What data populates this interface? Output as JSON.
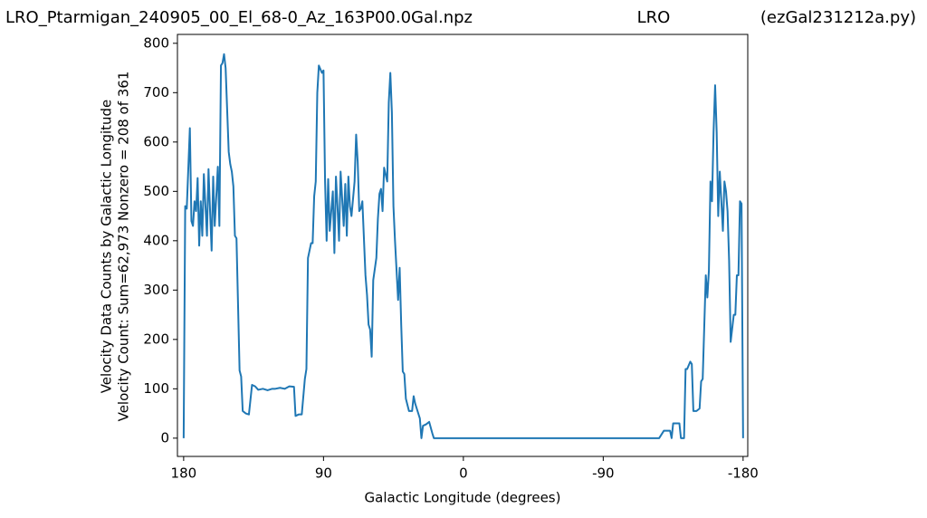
{
  "chart_data": {
    "type": "line",
    "title": "LRO_Ptarmigan_240905_00_El_68-0_Az_163P00.0Gal.npz",
    "title_center": "LRO",
    "title_right": "(ezGal231212a.py)",
    "xlabel": "Galactic Longitude (degrees)",
    "ylabel": [
      "Velocity Data Counts by Galactic Longitude",
      "Velocity Count: Sum=62,973 Nonzero = 208 of 361"
    ],
    "x": [
      180,
      179,
      178,
      176,
      175,
      174,
      173,
      172,
      171,
      170,
      169,
      168,
      167,
      165,
      164,
      163,
      162,
      161,
      160,
      158,
      157,
      156,
      155,
      154,
      153,
      151,
      150,
      149,
      148,
      147,
      146,
      144,
      143,
      142,
      140,
      138,
      136,
      134,
      132,
      129,
      126,
      123,
      121,
      118,
      115,
      112,
      109,
      108,
      106,
      104,
      102,
      101,
      100,
      98,
      97,
      96,
      95,
      94,
      93,
      91,
      90,
      89,
      88,
      87,
      86,
      84,
      83,
      82,
      81,
      80,
      79,
      77,
      76,
      75,
      74,
      73,
      72,
      70,
      69,
      68,
      67,
      66,
      65,
      63,
      62,
      61,
      60,
      59,
      58,
      56,
      55,
      54,
      53,
      52,
      51,
      49,
      48,
      47,
      46,
      45,
      44,
      42,
      41,
      40,
      39,
      38,
      37,
      35,
      33,
      32,
      31,
      30,
      28,
      27,
      26,
      24,
      22,
      20,
      19,
      -126,
      -129,
      -133,
      -134,
      -135,
      -139,
      -140,
      -142,
      -143,
      -144,
      -146,
      -147,
      -148,
      -150,
      -152,
      -153,
      -154,
      -156,
      -157,
      -158,
      -159,
      -160,
      -161,
      -162,
      -163,
      -164,
      -165,
      -167,
      -168,
      -169,
      -170,
      -171,
      -172,
      -174,
      -175,
      -176,
      -177,
      -178,
      -179,
      -180
    ],
    "series": [
      {
        "name": "counts",
        "color": "#1f77b4",
        "values": [
          0,
          470,
          465,
          628,
          440,
          430,
          480,
          460,
          527,
          390,
          480,
          410,
          535,
          410,
          545,
          460,
          380,
          530,
          430,
          550,
          430,
          755,
          760,
          778,
          750,
          580,
          555,
          540,
          510,
          410,
          405,
          137,
          125,
          55,
          50,
          48,
          108,
          105,
          98,
          100,
          97,
          100,
          100,
          102,
          100,
          105,
          104,
          45,
          48,
          48,
          120,
          140,
          365,
          395,
          395,
          490,
          520,
          700,
          755,
          740,
          745,
          520,
          400,
          525,
          420,
          500,
          375,
          530,
          470,
          400,
          540,
          430,
          515,
          410,
          530,
          470,
          450,
          520,
          615,
          560,
          460,
          465,
          480,
          330,
          290,
          230,
          220,
          165,
          320,
          365,
          445,
          495,
          505,
          460,
          548,
          520,
          680,
          740,
          660,
          470,
          400,
          280,
          345,
          230,
          135,
          130,
          80,
          55,
          55,
          85,
          70,
          60,
          40,
          0,
          25,
          28,
          33,
          10,
          0,
          0,
          15,
          15,
          0,
          30,
          30,
          0,
          0,
          140,
          140,
          155,
          150,
          55,
          55,
          60,
          115,
          120,
          330,
          285,
          340,
          520,
          480,
          620,
          715,
          620,
          450,
          540,
          420,
          520,
          500,
          460,
          360,
          195,
          250,
          250,
          330,
          330,
          480,
          475,
          0
        ]
      }
    ],
    "xlim": [
      184,
      -183
    ],
    "xticks": [
      180,
      90,
      0,
      -90,
      -180
    ],
    "ylim": [
      -37,
      818
    ],
    "yticks": [
      0,
      100,
      200,
      300,
      400,
      500,
      600,
      700,
      800
    ]
  }
}
